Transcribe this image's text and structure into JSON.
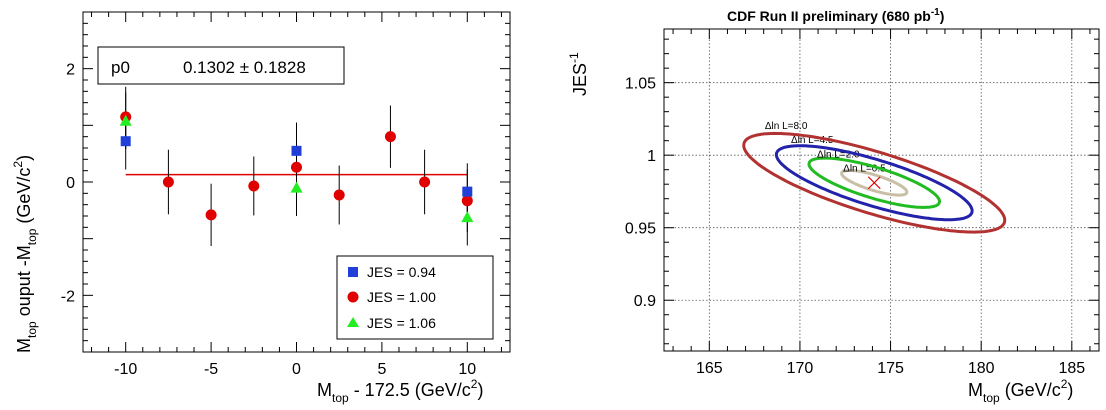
{
  "chart_data": [
    {
      "type": "scatter",
      "xlabel": "M_top - 172.5 (GeV/c^2)",
      "ylabel": "M_top ouput -M_top (GeV/c^2)",
      "xlim": [
        -12.5,
        12.5
      ],
      "ylim": [
        -3,
        3
      ],
      "xticks": [
        "-10",
        "-5",
        "0",
        "5",
        "10"
      ],
      "yticks": [
        "2",
        "0",
        "-2"
      ],
      "fit": {
        "label": "p0",
        "value": "0.1302 ± 0.1828",
        "y": 0.1302,
        "x_range": [
          -10,
          10
        ],
        "color": "#e00000"
      },
      "series": [
        {
          "name": "JES = 0.94",
          "marker": "square",
          "color": "#1f3fd8",
          "points": [
            {
              "x": -10,
              "y": 0.72,
              "err": 0.5
            },
            {
              "x": 0,
              "y": 0.55,
              "err": 0.5
            },
            {
              "x": 10,
              "y": -0.17,
              "err": 0.5
            }
          ]
        },
        {
          "name": "JES = 1.00",
          "marker": "circle",
          "color": "#e00000",
          "points": [
            {
              "x": -10,
              "y": 1.15,
              "err": 0.53
            },
            {
              "x": -7.5,
              "y": 0.0,
              "err": 0.57
            },
            {
              "x": -5,
              "y": -0.58,
              "err": 0.55
            },
            {
              "x": -2.5,
              "y": -0.07,
              "err": 0.52
            },
            {
              "x": 0,
              "y": 0.26,
              "err": 0.54
            },
            {
              "x": 2.5,
              "y": -0.23,
              "err": 0.52
            },
            {
              "x": 5.5,
              "y": 0.8,
              "err": 0.55
            },
            {
              "x": 7.5,
              "y": 0.0,
              "err": 0.57
            },
            {
              "x": 10,
              "y": -0.33,
              "err": 0.55
            }
          ]
        },
        {
          "name": "JES = 1.06",
          "marker": "triangle",
          "color": "#22ee22",
          "points": [
            {
              "x": -10,
              "y": 1.08,
              "err": 0.5
            },
            {
              "x": 0,
              "y": -0.1,
              "err": 0.5
            },
            {
              "x": 10,
              "y": -0.62,
              "err": 0.5
            }
          ]
        }
      ],
      "legend": {
        "placement": "bottom-right"
      }
    },
    {
      "type": "contour",
      "title": "CDF Run II preliminary (680 pb^-1)",
      "xlabel": "M_top (GeV/c^2)",
      "ylabel": "JES^-1",
      "xlim": [
        162.5,
        186.5
      ],
      "ylim": [
        0.865,
        1.087
      ],
      "xticks": [
        "165",
        "170",
        "175",
        "180",
        "185"
      ],
      "yticks": [
        "1.05",
        "1",
        "0.95",
        "0.9"
      ],
      "grid": true,
      "best_fit": {
        "x": 174.1,
        "y": 0.981,
        "marker": "cross",
        "color": "#e00000"
      },
      "contours": [
        {
          "label": "Δln L=0.5",
          "color": "#c9bfa7",
          "center_x": 174.1,
          "center_y": 0.981,
          "sx": 1.8,
          "sy": 0.0085,
          "rho": -0.76
        },
        {
          "label": "Δln L=2.0",
          "color": "#22bb22",
          "center_x": 174.1,
          "center_y": 0.981,
          "sx": 3.6,
          "sy": 0.017,
          "rho": -0.76
        },
        {
          "label": "Δln L=4.5",
          "color": "#2222aa",
          "center_x": 174.1,
          "center_y": 0.981,
          "sx": 5.4,
          "sy": 0.0255,
          "rho": -0.76
        },
        {
          "label": "Δln L=8.0",
          "color": "#b23232",
          "center_x": 174.1,
          "center_y": 0.981,
          "sx": 7.2,
          "sy": 0.034,
          "rho": -0.76
        }
      ]
    }
  ]
}
